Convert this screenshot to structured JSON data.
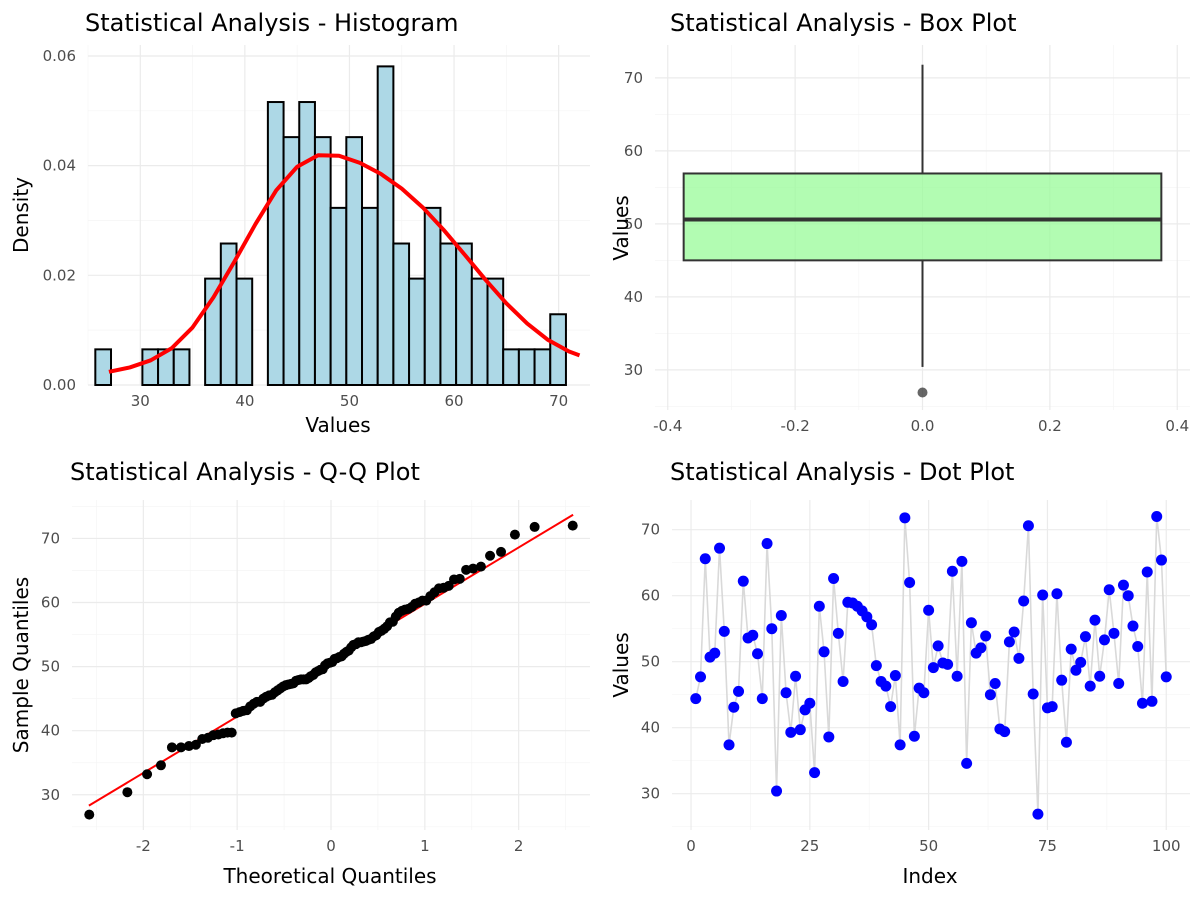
{
  "chart_data": [
    {
      "type": "histogram",
      "title": "Statistical Analysis - Histogram",
      "xlabel": "Values",
      "ylabel": "Density",
      "xlim": [
        25,
        73
      ],
      "ylim": [
        0,
        0.062
      ],
      "x_ticks": [
        30,
        40,
        50,
        60,
        70
      ],
      "y_ticks": [
        0,
        0.02,
        0.04,
        0.06
      ],
      "y_tick_labels": [
        "0.00",
        "0.02",
        "0.04",
        "0.06"
      ],
      "bin_width": 1.5,
      "bin_start": 25.7,
      "densities": [
        0.0065,
        0,
        0,
        0.0065,
        0.0065,
        0.0065,
        0,
        0.0194,
        0.0258,
        0.0194,
        0,
        0.0516,
        0.0452,
        0.0516,
        0.0452,
        0.0323,
        0.0452,
        0.0323,
        0.0581,
        0.0258,
        0.0194,
        0.0323,
        0.0258,
        0.0258,
        0.0194,
        0.0194,
        0.0065,
        0.0065,
        0.0065,
        0.0129
      ],
      "bar_fill": "#ADD8E6",
      "density_curve": {
        "color": "#FF0000",
        "x": [
          27,
          29,
          31,
          33,
          35,
          37,
          39,
          41,
          43,
          45,
          47,
          49,
          51,
          53,
          55,
          57,
          59,
          61,
          63,
          65,
          67,
          69,
          71,
          72
        ],
        "y": [
          0.0024,
          0.0032,
          0.0045,
          0.0067,
          0.0105,
          0.016,
          0.0225,
          0.0293,
          0.0355,
          0.0398,
          0.0419,
          0.0418,
          0.0405,
          0.0385,
          0.0358,
          0.0324,
          0.0283,
          0.0238,
          0.0192,
          0.0149,
          0.0112,
          0.0082,
          0.0061,
          0.0054
        ]
      },
      "grid": true
    },
    {
      "type": "box",
      "title": "Statistical Analysis - Box Plot",
      "xlabel": "",
      "ylabel": "Values",
      "xlim": [
        -0.42,
        0.42
      ],
      "ylim": [
        24.5,
        74.5
      ],
      "x_ticks": [
        -0.4,
        -0.2,
        0,
        0.2,
        0.4
      ],
      "x_tick_labels": [
        "-0.4",
        "-0.2",
        "0.0",
        "0.2",
        "0.4"
      ],
      "y_ticks": [
        30,
        40,
        50,
        60,
        70
      ],
      "box": {
        "x_min": -0.375,
        "x_max": 0.375,
        "whisker_low": 30.4,
        "q1": 45,
        "median": 50.6,
        "q3": 56.9,
        "whisker_high": 71.8
      },
      "outliers": [
        26.9
      ],
      "fill": "#98FB98",
      "grid": true
    },
    {
      "type": "scatter",
      "title": "Statistical Analysis - Q-Q Plot",
      "xlabel": "Theoretical Quantiles",
      "ylabel": "Sample Quantiles",
      "xlim": [
        -2.76,
        2.76
      ],
      "ylim": [
        24.5,
        76
      ],
      "x_ticks": [
        -2,
        -1,
        0,
        1,
        2
      ],
      "y_ticks": [
        30,
        40,
        50,
        60,
        70
      ],
      "reference_line": {
        "color": "#FF0000",
        "x": [
          -2.58,
          2.58
        ],
        "y": [
          28.3,
          73.7
        ]
      },
      "theoretical": [
        -2.576,
        -2.17,
        -1.96,
        -1.812,
        -1.695,
        -1.598,
        -1.514,
        -1.44,
        -1.372,
        -1.311,
        -1.254,
        -1.2,
        -1.15,
        -1.103,
        -1.058,
        -1.015,
        -0.974,
        -0.935,
        -0.896,
        -0.86,
        -0.824,
        -0.789,
        -0.755,
        -0.722,
        -0.69,
        -0.659,
        -0.628,
        -0.598,
        -0.568,
        -0.539,
        -0.51,
        -0.482,
        -0.454,
        -0.426,
        -0.399,
        -0.372,
        -0.345,
        -0.319,
        -0.292,
        -0.266,
        -0.24,
        -0.215,
        -0.189,
        -0.164,
        -0.138,
        -0.113,
        -0.088,
        -0.063,
        -0.038,
        -0.013,
        0.013,
        0.038,
        0.063,
        0.088,
        0.113,
        0.138,
        0.164,
        0.189,
        0.215,
        0.24,
        0.266,
        0.292,
        0.319,
        0.345,
        0.372,
        0.399,
        0.426,
        0.454,
        0.482,
        0.51,
        0.539,
        0.568,
        0.598,
        0.628,
        0.659,
        0.69,
        0.722,
        0.755,
        0.789,
        0.824,
        0.86,
        0.896,
        0.935,
        0.974,
        1.015,
        1.058,
        1.103,
        1.15,
        1.2,
        1.254,
        1.311,
        1.372,
        1.44,
        1.514,
        1.598,
        1.695,
        1.812,
        1.96,
        2.17,
        2.576
      ],
      "sample": [
        26.9,
        30.4,
        33.2,
        34.6,
        37.4,
        37.4,
        37.6,
        37.8,
        38.7,
        38.9,
        39.3,
        39.4,
        39.6,
        39.7,
        39.7,
        42.7,
        42.9,
        43.1,
        43.2,
        43.8,
        44.2,
        44.5,
        44.5,
        45.0,
        45.3,
        45.5,
        45.6,
        46.0,
        46.3,
        46.6,
        46.9,
        47.1,
        47.2,
        47.3,
        47.4,
        47.8,
        47.9,
        48.0,
        48.0,
        48.0,
        48.2,
        48.5,
        48.7,
        49.1,
        49.3,
        49.5,
        49.6,
        50.2,
        50.5,
        50.6,
        50.7,
        51.2,
        51.3,
        51.5,
        51.6,
        52.0,
        52.3,
        52.5,
        53.0,
        53.4,
        53.5,
        53.8,
        53.8,
        53.9,
        54.0,
        54.2,
        54.3,
        54.7,
        54.9,
        55.4,
        55.6,
        55.9,
        56.3,
        56.9,
        57.0,
        57.8,
        58.4,
        58.7,
        58.9,
        59.0,
        59.3,
        59.8,
        60.0,
        60.3,
        60.3,
        61.0,
        61.6,
        62.2,
        62.3,
        62.6,
        63.6,
        63.7,
        65.1,
        65.3,
        65.6,
        67.3,
        67.9,
        70.6,
        71.8,
        72.0
      ],
      "point_color": "#000000",
      "grid": true
    },
    {
      "type": "scatter",
      "title": "Statistical Analysis - Dot Plot",
      "xlabel": "Index",
      "ylabel": "Values",
      "xlim": [
        -4,
        105
      ],
      "ylim": [
        24.5,
        74.5
      ],
      "x_ticks": [
        0,
        25,
        50,
        75,
        100
      ],
      "y_ticks": [
        30,
        40,
        50,
        60,
        70
      ],
      "connect_points": true,
      "line_color": "#D9D9D9",
      "point_color": "#0000FF",
      "x": [
        1,
        2,
        3,
        4,
        5,
        6,
        7,
        8,
        9,
        10,
        11,
        12,
        13,
        14,
        15,
        16,
        17,
        18,
        19,
        20,
        21,
        22,
        23,
        24,
        25,
        26,
        27,
        28,
        29,
        30,
        31,
        32,
        33,
        34,
        35,
        36,
        37,
        38,
        39,
        40,
        41,
        42,
        43,
        44,
        45,
        46,
        47,
        48,
        49,
        50,
        51,
        52,
        53,
        54,
        55,
        56,
        57,
        58,
        59,
        60,
        61,
        62,
        63,
        64,
        65,
        66,
        67,
        68,
        69,
        70,
        71,
        72,
        73,
        74,
        75,
        76,
        77,
        78,
        79,
        80,
        81,
        82,
        83,
        84,
        85,
        86,
        87,
        88,
        89,
        90,
        91,
        92,
        93,
        94,
        95,
        96,
        97,
        98,
        99,
        100
      ],
      "y": [
        44.4,
        47.7,
        65.6,
        50.7,
        51.3,
        67.2,
        54.6,
        37.4,
        43.1,
        45.5,
        62.2,
        53.6,
        54.0,
        51.2,
        44.4,
        67.9,
        55.0,
        30.4,
        57.0,
        45.3,
        39.3,
        47.8,
        39.7,
        42.7,
        43.7,
        33.2,
        58.4,
        51.5,
        38.6,
        62.6,
        54.3,
        47.0,
        59.0,
        58.9,
        58.4,
        57.7,
        56.8,
        55.6,
        49.4,
        47.0,
        46.3,
        43.2,
        47.9,
        37.4,
        71.8,
        62.0,
        38.7,
        46.0,
        45.3,
        57.8,
        49.1,
        52.4,
        49.8,
        49.6,
        63.7,
        47.8,
        65.2,
        34.6,
        55.9,
        51.3,
        52.1,
        53.9,
        45.0,
        46.7,
        39.8,
        39.4,
        53.0,
        54.5,
        50.5,
        59.2,
        70.6,
        45.1,
        26.9,
        60.1,
        43.0,
        43.2,
        60.3,
        47.2,
        37.8,
        51.9,
        48.7,
        49.9,
        53.8,
        46.3,
        56.3,
        47.8,
        53.3,
        60.9,
        54.3,
        46.7,
        61.6,
        60.0,
        55.4,
        52.3,
        43.7,
        63.6,
        44.0,
        72.0,
        65.4,
        47.7
      ]
    }
  ]
}
